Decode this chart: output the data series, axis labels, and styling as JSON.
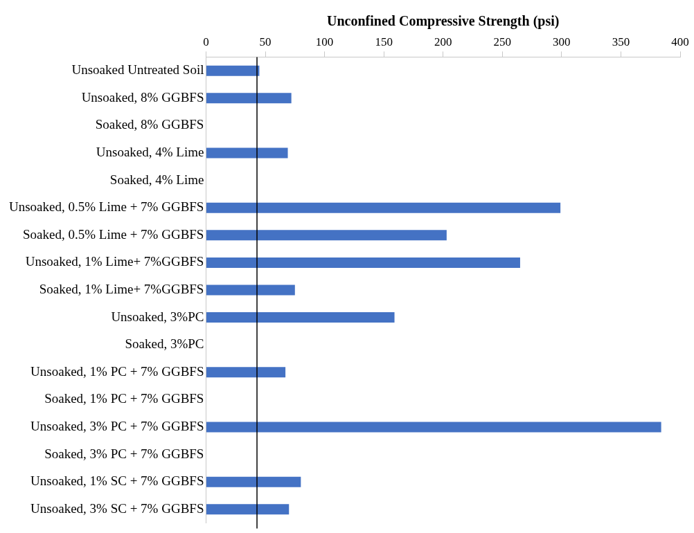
{
  "chart_data": {
    "type": "bar",
    "orientation": "horizontal",
    "xlabel": "Unconfined Compressive Strength (psi)",
    "categories": [
      "Unsoaked Untreated Soil",
      "Unsoaked, 8% GGBFS",
      "Soaked, 8% GGBFS",
      "Unsoaked, 4% Lime",
      "Soaked, 4% Lime",
      "Unsoaked, 0.5% Lime + 7% GGBFS",
      "Soaked, 0.5% Lime + 7% GGBFS",
      "Unsoaked, 1% Lime+ 7%GGBFS",
      "Soaked, 1% Lime+ 7%GGBFS",
      "Unsoaked, 3%PC",
      "Soaked, 3%PC",
      "Unsoaked, 1% PC + 7% GGBFS",
      "Soaked, 1% PC + 7% GGBFS",
      "Unsoaked, 3% PC + 7% GGBFS",
      "Soaked, 3% PC + 7% GGBFS",
      "Unsoaked, 1% SC + 7% GGBFS",
      "Unsoaked, 3% SC + 7% GGBFS"
    ],
    "values": [
      45,
      72,
      null,
      69,
      null,
      299,
      203,
      265,
      75,
      159,
      null,
      67,
      null,
      384,
      null,
      80,
      70
    ],
    "color": "#4472c4",
    "xlim": [
      0,
      400
    ],
    "xticks": [
      0,
      50,
      100,
      150,
      200,
      250,
      300,
      350,
      400
    ],
    "grid": false,
    "legend": false,
    "ref_lines": [
      {
        "axis": "x",
        "value": 43,
        "color": "#000000"
      }
    ]
  }
}
